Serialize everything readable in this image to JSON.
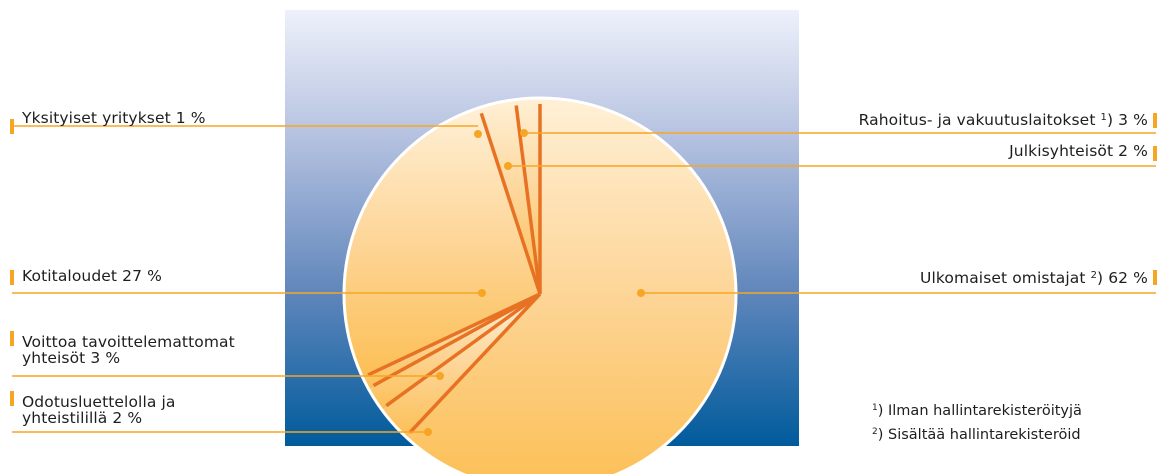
{
  "chart_data": {
    "type": "pie",
    "categories": [
      "Ulkomaiset omistajat",
      "Rahoitus- ja vakuutuslaitokset",
      "Julkisyhteisöt",
      "Yksityiset yritykset",
      "Kotitaloudet",
      "Voittoa tavoittelemattomat yhteisöt",
      "Odotusluettelolla ja yhteistilillä"
    ],
    "values": [
      62,
      3,
      2,
      1,
      27,
      3,
      2
    ],
    "slice_colors": [
      "#fccf86",
      "#fccf86",
      "#fccf86",
      "#fccf86",
      "#fccf86",
      "#fccf86",
      "#fccf86"
    ],
    "separator_color": "#e87224",
    "leader_color": "#f6a623"
  },
  "labels": {
    "yksityiset": {
      "text": "Yksityiset yritykset 1 %"
    },
    "rahoitus": {
      "text": "Rahoitus- ja vakuutuslaitokset",
      "sup": "1",
      "suffix": ") 3 %"
    },
    "julkis": {
      "text": "Julkisyhteisöt 2 %"
    },
    "kotitaloudet": {
      "text": "Kotitaloudet 27 %"
    },
    "ulkomaiset": {
      "text": "Ulkomaiset omistajat",
      "sup": "2",
      "suffix": ") 62 %"
    },
    "voittoa": {
      "line1": "Voittoa tavoittelemattomat",
      "line2": "yhteisöt 3 %"
    },
    "odotus": {
      "line1": "Odotusluettelolla ja",
      "line2": "yhteistilillä 2 %"
    }
  },
  "footnotes": {
    "fn1": {
      "sup": "1",
      "text": ") Ilman hallintarekisteröityjä"
    },
    "fn2": {
      "sup": "2",
      "text": ") Sisältää hallintarekisteröid"
    }
  },
  "colors": {
    "background_top": "#eef1fb",
    "background_bottom": "#005b9c",
    "pie_light": "#fff0d6",
    "pie_dark": "#fcbf55",
    "accent_bar": "#f6a623"
  }
}
